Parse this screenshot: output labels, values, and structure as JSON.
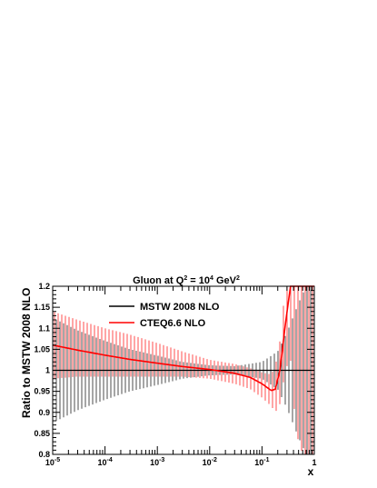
{
  "chart_data": {
    "type": "line",
    "title": "Gluon at Q² = 10⁴ GeV²",
    "title_parts": {
      "pre": "Gluon at Q",
      "sup1": "2",
      "mid": " = 10",
      "sup2": "4",
      "post": " GeV",
      "sup3": "2"
    },
    "xlabel": "x",
    "ylabel": "Ratio to MSTW 2008 NLO",
    "x_scale": "log",
    "xlim": [
      1e-05,
      1
    ],
    "ylim": [
      0.8,
      1.2
    ],
    "x_ticks": [
      {
        "value": 1e-05,
        "base": "10",
        "exp": "-5"
      },
      {
        "value": 0.0001,
        "base": "10",
        "exp": "-4"
      },
      {
        "value": 0.001,
        "base": "10",
        "exp": "-3"
      },
      {
        "value": 0.01,
        "base": "10",
        "exp": "-2"
      },
      {
        "value": 0.1,
        "base": "10",
        "exp": "-1"
      },
      {
        "value": 1,
        "base": "1",
        "exp": ""
      }
    ],
    "y_ticks": [
      {
        "value": 0.8,
        "label": "0.8"
      },
      {
        "value": 0.85,
        "label": "0.85"
      },
      {
        "value": 0.9,
        "label": "0.9"
      },
      {
        "value": 0.95,
        "label": "0.95"
      },
      {
        "value": 1.0,
        "label": "1"
      },
      {
        "value": 1.05,
        "label": "1.05"
      },
      {
        "value": 1.1,
        "label": "1.1"
      },
      {
        "value": 1.15,
        "label": "1.15"
      },
      {
        "value": 1.2,
        "label": "1.2"
      }
    ],
    "legend_position": "top-left",
    "grid": false,
    "series": [
      {
        "name": "MSTW 2008 NLO",
        "color": "#000000",
        "x": [
          1e-05,
          3e-05,
          0.0001,
          0.0003,
          0.001,
          0.003,
          0.01,
          0.03,
          0.1,
          0.2,
          0.3,
          0.5,
          0.7,
          1.0
        ],
        "central": [
          1,
          1,
          1,
          1,
          1,
          1,
          1,
          1,
          1,
          1,
          1,
          1,
          1,
          1
        ],
        "upper": [
          1.125,
          1.095,
          1.07,
          1.05,
          1.035,
          1.02,
          1.012,
          1.01,
          1.02,
          1.045,
          1.09,
          1.16,
          1.2,
          1.2
        ],
        "lower": [
          0.875,
          0.905,
          0.93,
          0.95,
          0.965,
          0.98,
          0.988,
          0.99,
          0.98,
          0.955,
          0.91,
          0.84,
          0.8,
          0.8
        ]
      },
      {
        "name": "CTEQ6.6 NLO",
        "color": "#ff0000",
        "x": [
          1e-05,
          3e-05,
          0.0001,
          0.0003,
          0.001,
          0.003,
          0.01,
          0.03,
          0.06,
          0.1,
          0.15,
          0.18,
          0.22,
          0.28,
          0.35,
          0.45,
          0.6,
          0.8,
          1.0
        ],
        "central": [
          1.06,
          1.048,
          1.036,
          1.026,
          1.017,
          1.009,
          1.002,
          0.993,
          0.983,
          0.968,
          0.952,
          0.955,
          1.0,
          1.11,
          1.2,
          1.2,
          1.2,
          1.2,
          1.2
        ],
        "upper": [
          1.14,
          1.12,
          1.1,
          1.085,
          1.065,
          1.045,
          1.025,
          1.015,
          1.005,
          0.995,
          0.99,
          1.01,
          1.07,
          1.2,
          1.2,
          1.2,
          1.2,
          1.2,
          1.2
        ],
        "lower": [
          0.98,
          0.985,
          0.985,
          0.985,
          0.985,
          0.985,
          0.98,
          0.968,
          0.955,
          0.935,
          0.915,
          0.9,
          0.92,
          1.0,
          1.03,
          0.85,
          0.8,
          0.8,
          0.8
        ]
      }
    ]
  }
}
